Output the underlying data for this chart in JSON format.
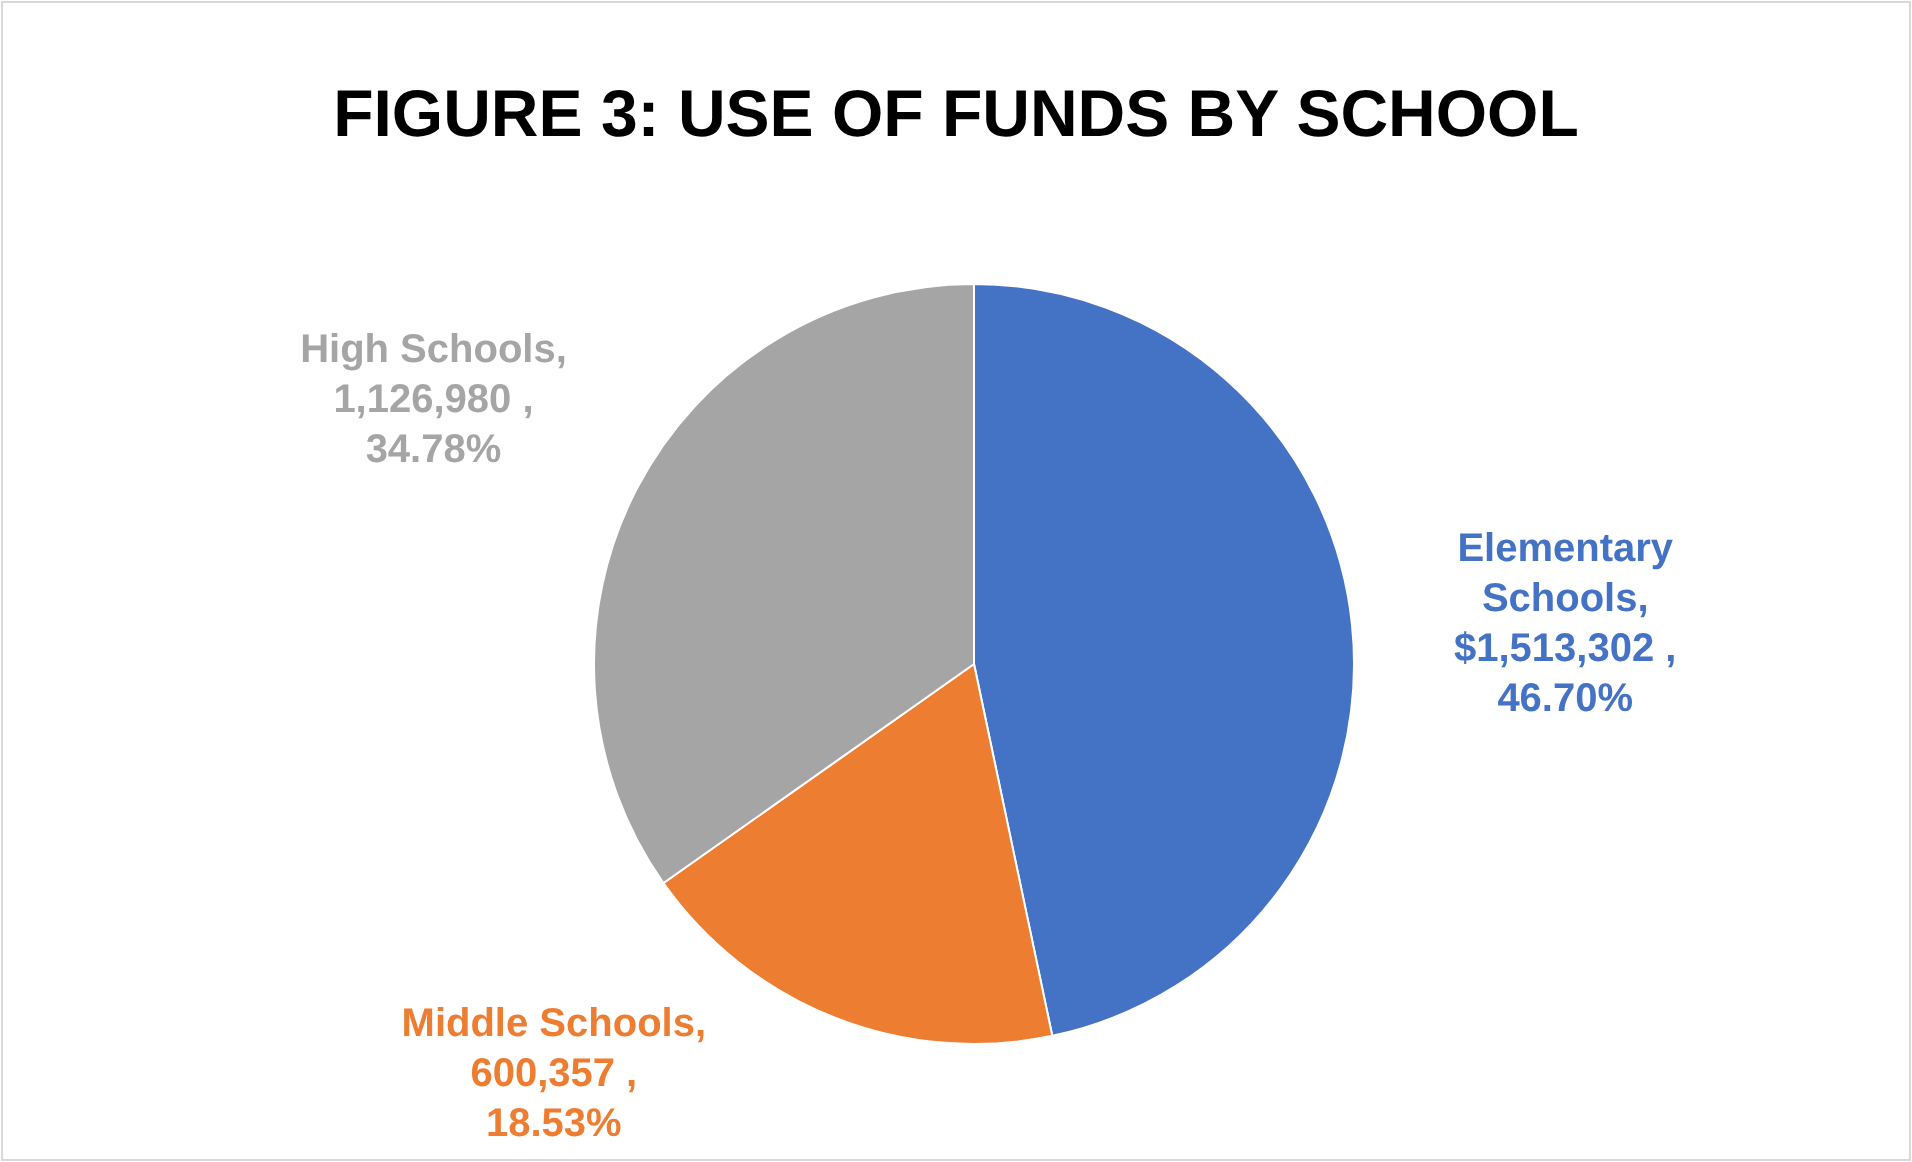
{
  "chart_data": {
    "type": "pie",
    "title": "FIGURE 3: USE OF FUNDS BY SCHOOL",
    "categories": [
      "Elementary Schools",
      "Middle Schools",
      "High Schools"
    ],
    "values": [
      1513302,
      600357,
      1126980
    ],
    "value_labels": [
      ", $1,513,302 , 46.70%",
      ", 600,357 , 18.53%",
      ", 1,126,980 , 34.78%"
    ],
    "colors": [
      "#4472c4",
      "#ed7d31",
      "#a5a5a5"
    ]
  }
}
